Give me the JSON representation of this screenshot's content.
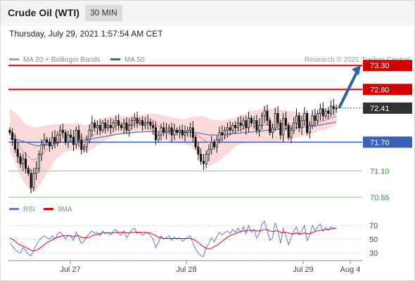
{
  "header": {
    "title": "Crude Oil (WTI)",
    "timeframe": "30 MIN"
  },
  "timestamp": "Thursday, July 29, 2021 1:57:54 AM CET",
  "credit": "Research © 2021 Trading Central",
  "colors": {
    "resistance": "#d40000",
    "support_blue": "#3a62b8",
    "support_green": "#3a8a3a",
    "current": "#333333",
    "arrow": "#2e5fa3",
    "ma20": "#f08080",
    "ma50": "#3a62b8",
    "band": "#fbdada",
    "rsi": "#5b7bd5",
    "rsi_ma": "#e00000",
    "up_candle": "#ffffff",
    "down_candle": "#111111"
  },
  "chart_data": [
    {
      "type": "candlestick",
      "title": "Crude Oil (WTI)",
      "interval": "30 MIN",
      "legend": [
        {
          "name": "MA 20 + Bollinger Bands",
          "color": "#f08080"
        },
        {
          "name": "MA 50",
          "color": "#3a62b8"
        }
      ],
      "ylim": [
        70.4,
        73.45
      ],
      "x_ticks": [
        "Jul 27",
        "Jul 28",
        "Jul 29",
        "Aug 4"
      ],
      "levels": [
        {
          "label": "73.30",
          "value": 73.3,
          "kind": "resistance",
          "style": "box-red"
        },
        {
          "label": "72.80",
          "value": 72.8,
          "kind": "resistance",
          "style": "box-red"
        },
        {
          "label": "72.41",
          "value": 72.41,
          "kind": "current",
          "style": "box-dark"
        },
        {
          "label": "71.70",
          "value": 71.7,
          "kind": "support",
          "style": "box-blue"
        },
        {
          "label": "71.10",
          "value": 71.1,
          "kind": "support",
          "style": "text-green"
        },
        {
          "label": "70.55",
          "value": 70.55,
          "kind": "support",
          "style": "text-green"
        }
      ],
      "arrow": {
        "from": 72.41,
        "to": 73.3
      },
      "candles_close": [
        71.9,
        71.75,
        71.55,
        71.4,
        71.25,
        71.35,
        71.15,
        71.05,
        70.75,
        71.05,
        71.15,
        71.45,
        71.65,
        71.75,
        71.7,
        71.62,
        71.8,
        71.7,
        71.85,
        71.95,
        71.9,
        71.7,
        71.85,
        71.8,
        71.65,
        71.95,
        71.75,
        71.55,
        71.6,
        71.75,
        71.95,
        72.1,
        72.0,
        72.05,
        71.95,
        72.1,
        72.0,
        72.05,
        72.0,
        72.1,
        72.15,
        72.05,
        72.0,
        72.1,
        71.95,
        72.05,
        72.15,
        72.2,
        72.1,
        72.15,
        72.05,
        72.1,
        72.12,
        72.05,
        72.0,
        71.75,
        71.85,
        72.0,
        71.9,
        71.95,
        72.0,
        71.85,
        71.95,
        71.9,
        71.95,
        71.85,
        71.9,
        71.95,
        72.0,
        71.8,
        71.6,
        71.45,
        71.3,
        71.25,
        71.45,
        71.55,
        71.7,
        71.6,
        71.75,
        71.9,
        71.85,
        71.95,
        72.0,
        71.95,
        72.05,
        72.0,
        72.1,
        72.05,
        72.15,
        72.0,
        72.2,
        72.1,
        72.15,
        71.95,
        72.05,
        72.25,
        72.35,
        72.15,
        71.9,
        72.0,
        72.3,
        72.1,
        71.85,
        72.2,
        72.05,
        71.8,
        71.95,
        72.1,
        72.25,
        72.0,
        72.15,
        72.3,
        71.9,
        72.05,
        72.25,
        72.15,
        72.3,
        72.4,
        72.25,
        72.35,
        72.3,
        72.45,
        72.4,
        72.41
      ],
      "ma20": [
        71.95,
        71.88,
        71.8,
        71.7,
        71.6,
        71.5,
        71.45,
        71.4,
        71.35,
        71.33,
        71.35,
        71.4,
        71.45,
        71.5,
        71.55,
        71.6,
        71.65,
        71.7,
        71.72,
        71.75,
        71.78,
        71.8,
        71.8,
        71.8,
        71.8,
        71.82,
        71.82,
        71.8,
        71.78,
        71.78,
        71.8,
        71.83,
        71.86,
        71.9,
        71.92,
        71.95,
        71.98,
        72.0,
        72.02,
        72.03,
        72.05,
        72.05,
        72.06,
        72.06,
        72.06,
        72.06,
        72.07,
        72.08,
        72.08,
        72.09,
        72.09,
        72.1,
        72.1,
        72.09,
        72.08,
        72.05,
        72.03,
        72.02,
        72.0,
        71.99,
        71.98,
        71.96,
        71.95,
        71.94,
        71.93,
        71.92,
        71.92,
        71.92,
        71.92,
        71.9,
        71.87,
        71.83,
        71.79,
        71.75,
        71.72,
        71.7,
        71.7,
        71.7,
        71.72,
        71.74,
        71.76,
        71.79,
        71.82,
        71.85,
        71.88,
        71.91,
        71.94,
        71.96,
        71.98,
        72.0,
        72.02,
        72.03,
        72.04,
        72.04,
        72.04,
        72.05,
        72.06,
        72.06,
        72.05,
        72.05,
        72.06,
        72.06,
        72.05,
        72.06,
        72.06,
        72.05,
        72.05,
        72.06,
        72.07,
        72.06,
        72.07,
        72.08,
        72.07,
        72.08,
        72.09,
        72.1,
        72.11,
        72.13,
        72.14,
        72.16,
        72.18,
        72.2,
        72.22,
        72.24
      ],
      "ma50": [
        71.78,
        71.77,
        71.76,
        71.75,
        71.73,
        71.72,
        71.7,
        71.68,
        71.66,
        71.64,
        71.63,
        71.62,
        71.62,
        71.63,
        71.64,
        71.65,
        71.66,
        71.67,
        71.68,
        71.69,
        71.7,
        71.71,
        71.71,
        71.72,
        71.72,
        71.73,
        71.73,
        71.74,
        71.74,
        71.75,
        71.76,
        71.77,
        71.78,
        71.79,
        71.8,
        71.81,
        71.82,
        71.83,
        71.84,
        71.85,
        71.86,
        71.87,
        71.88,
        71.88,
        71.89,
        71.89,
        71.9,
        71.9,
        71.91,
        71.91,
        71.91,
        71.92,
        71.92,
        71.92,
        71.92,
        71.92,
        71.92,
        71.92,
        71.92,
        71.92,
        71.92,
        71.92,
        71.92,
        71.92,
        71.92,
        71.91,
        71.91,
        71.91,
        71.91,
        71.9,
        71.9,
        71.89,
        71.88,
        71.87,
        71.86,
        71.85,
        71.85,
        71.85,
        71.85,
        71.85,
        71.86,
        71.86,
        71.87,
        71.87,
        71.88,
        71.88,
        71.89,
        71.89,
        71.9,
        71.9,
        71.91,
        71.91,
        71.92,
        71.92,
        71.93,
        71.93,
        71.94,
        71.95,
        71.95,
        71.96,
        71.96,
        71.97,
        71.97,
        71.98,
        71.98,
        71.99,
        71.99,
        72.0,
        72.0,
        72.01,
        72.01,
        72.02,
        72.02,
        72.03,
        72.04,
        72.05,
        72.05,
        72.06,
        72.07,
        72.08,
        72.09,
        72.1,
        72.11,
        72.12
      ],
      "band_width": [
        0.45,
        0.48,
        0.52,
        0.56,
        0.6,
        0.62,
        0.64,
        0.66,
        0.68,
        0.68,
        0.66,
        0.62,
        0.58,
        0.54,
        0.5,
        0.46,
        0.42,
        0.38,
        0.35,
        0.33,
        0.31,
        0.3,
        0.29,
        0.28,
        0.28,
        0.28,
        0.28,
        0.28,
        0.27,
        0.27,
        0.27,
        0.27,
        0.26,
        0.26,
        0.26,
        0.25,
        0.24,
        0.23,
        0.22,
        0.21,
        0.2,
        0.2,
        0.19,
        0.19,
        0.18,
        0.18,
        0.18,
        0.18,
        0.18,
        0.18,
        0.18,
        0.19,
        0.19,
        0.2,
        0.22,
        0.24,
        0.25,
        0.26,
        0.26,
        0.26,
        0.26,
        0.26,
        0.26,
        0.26,
        0.26,
        0.26,
        0.27,
        0.28,
        0.3,
        0.33,
        0.37,
        0.41,
        0.45,
        0.48,
        0.5,
        0.5,
        0.48,
        0.46,
        0.44,
        0.42,
        0.4,
        0.38,
        0.36,
        0.34,
        0.32,
        0.3,
        0.3,
        0.3,
        0.3,
        0.3,
        0.3,
        0.31,
        0.32,
        0.33,
        0.34,
        0.35,
        0.35,
        0.35,
        0.35,
        0.35,
        0.35,
        0.34,
        0.33,
        0.32,
        0.31,
        0.3,
        0.29,
        0.28,
        0.27,
        0.26,
        0.25,
        0.24,
        0.23,
        0.22,
        0.21,
        0.2,
        0.19,
        0.19,
        0.19,
        0.19,
        0.19,
        0.19,
        0.19,
        0.19
      ]
    },
    {
      "type": "line",
      "legend": [
        {
          "name": "RSI",
          "color": "#5b7bd5"
        },
        {
          "name": "9MA",
          "color": "#e00000"
        }
      ],
      "ylim": [
        20,
        80
      ],
      "y_ticks": [
        "70",
        "50",
        "30"
      ],
      "rsi": [
        45,
        40,
        35,
        32,
        30,
        38,
        33,
        28,
        26,
        34,
        42,
        48,
        52,
        55,
        52,
        50,
        55,
        50,
        58,
        60,
        56,
        50,
        56,
        54,
        48,
        60,
        52,
        44,
        47,
        54,
        58,
        62,
        58,
        60,
        55,
        62,
        58,
        60,
        56,
        62,
        64,
        58,
        56,
        62,
        52,
        58,
        64,
        66,
        58,
        60,
        56,
        58,
        60,
        55,
        50,
        38,
        45,
        55,
        50,
        52,
        55,
        48,
        53,
        50,
        52,
        47,
        50,
        53,
        55,
        44,
        36,
        30,
        26,
        25,
        38,
        44,
        52,
        46,
        54,
        60,
        56,
        60,
        62,
        58,
        64,
        60,
        66,
        60,
        68,
        58,
        70,
        60,
        64,
        52,
        58,
        72,
        76,
        62,
        48,
        52,
        74,
        62,
        44,
        66,
        55,
        42,
        52,
        62,
        68,
        56,
        62,
        70,
        48,
        56,
        70,
        62,
        68,
        72,
        62,
        67,
        63,
        68,
        66,
        66
      ],
      "rsi_ma": [
        52,
        50,
        47,
        44,
        41,
        40,
        38,
        36,
        34,
        33,
        34,
        36,
        39,
        42,
        45,
        47,
        49,
        51,
        53,
        54,
        55,
        55,
        55,
        55,
        54,
        55,
        55,
        53,
        52,
        52,
        53,
        55,
        56,
        57,
        58,
        59,
        59,
        59,
        59,
        59,
        60,
        60,
        60,
        60,
        59,
        59,
        60,
        60,
        60,
        60,
        60,
        60,
        59,
        59,
        57,
        55,
        53,
        52,
        51,
        51,
        51,
        51,
        51,
        51,
        51,
        51,
        51,
        51,
        51,
        50,
        48,
        45,
        42,
        39,
        37,
        36,
        37,
        39,
        41,
        44,
        47,
        50,
        53,
        55,
        57,
        58,
        60,
        61,
        62,
        62,
        63,
        63,
        63,
        62,
        62,
        63,
        64,
        64,
        62,
        61,
        62,
        62,
        60,
        60,
        60,
        59,
        58,
        58,
        59,
        58,
        58,
        59,
        58,
        58,
        60,
        61,
        62,
        63,
        63,
        64,
        64,
        65,
        65,
        66
      ]
    }
  ]
}
